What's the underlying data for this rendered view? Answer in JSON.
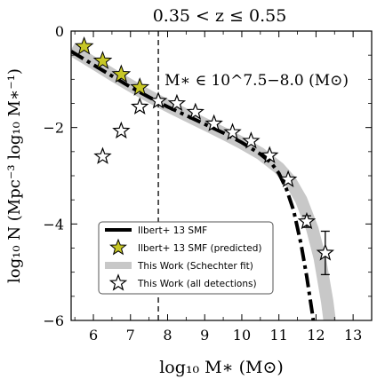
{
  "chart_data": {
    "type": "scatter",
    "title": "0.35 < z ≤ 0.55",
    "xlabel": "log₁₀ M∗ (M⊙)",
    "ylabel": "log₁₀ N (Mpc⁻³ log₁₀ M∗⁻¹)",
    "annotation": "M∗ ∈ 10^7.5−8.0 (M⊙)",
    "xlim": [
      5.4,
      13.5
    ],
    "ylim": [
      -6,
      0
    ],
    "xticks": [
      6,
      7,
      8,
      9,
      10,
      11,
      12,
      13
    ],
    "yticks": [
      0,
      -2,
      -4,
      -6
    ],
    "xtick_labels": [
      "6",
      "7",
      "8",
      "9",
      "10",
      "11",
      "12",
      "13"
    ],
    "ytick_labels": [
      "0",
      "−2",
      "−4",
      "−6"
    ],
    "mass_cut_x": 7.75,
    "legend_position": "lower-left",
    "series": [
      {
        "name": "Ilbert+ 13 SMF",
        "style": "dashdot",
        "color": "#000000",
        "x": [
          5.4,
          6.0,
          6.5,
          7.0,
          7.5,
          8.0,
          8.5,
          9.0,
          9.5,
          10.0,
          10.5,
          10.8,
          11.0,
          11.2,
          11.4,
          11.6,
          11.75,
          11.9,
          12.0
        ],
        "y": [
          -0.42,
          -0.7,
          -0.93,
          -1.16,
          -1.37,
          -1.57,
          -1.75,
          -1.93,
          -2.11,
          -2.31,
          -2.55,
          -2.74,
          -2.95,
          -3.27,
          -3.73,
          -4.43,
          -5.09,
          -5.85,
          -6.4
        ]
      },
      {
        "name": "Ilbert+ 13 SMF (predicted)",
        "style": "star",
        "color": "#c7c726",
        "x": [
          5.75,
          6.25,
          6.75,
          7.25
        ],
        "y": [
          -0.32,
          -0.62,
          -0.9,
          -1.17
        ]
      },
      {
        "name": "This Work (Schechter fit)",
        "style": "band",
        "color": "#c8c8c8",
        "x": [
          5.4,
          6.0,
          6.5,
          7.0,
          7.5,
          8.0,
          8.5,
          9.0,
          9.5,
          10.0,
          10.5,
          11.0,
          11.3,
          11.6,
          11.9,
          12.1,
          12.3,
          12.4
        ],
        "y": [
          -0.38,
          -0.66,
          -0.9,
          -1.13,
          -1.35,
          -1.55,
          -1.74,
          -1.93,
          -2.12,
          -2.32,
          -2.54,
          -2.84,
          -3.1,
          -3.5,
          -4.1,
          -4.7,
          -5.6,
          -6.2
        ]
      },
      {
        "name": "This Work (all detections)",
        "style": "open-star",
        "color": "#000000",
        "x": [
          6.25,
          6.75,
          7.25,
          7.75,
          8.25,
          8.75,
          9.25,
          9.75,
          10.25,
          10.75,
          11.25,
          11.75,
          12.25
        ],
        "y": [
          -2.6,
          -2.07,
          -1.57,
          -1.45,
          -1.5,
          -1.68,
          -1.92,
          -2.1,
          -2.28,
          -2.58,
          -3.08,
          -3.95,
          -4.6
        ],
        "yerr": [
          0,
          0,
          0,
          0,
          0,
          0,
          0,
          0,
          0,
          0,
          0,
          0.12,
          0.45
        ]
      }
    ],
    "legend": [
      "Ilbert+ 13 SMF",
      "Ilbert+ 13 SMF (predicted)",
      "This Work (Schechter fit)",
      "This Work (all detections)"
    ]
  }
}
